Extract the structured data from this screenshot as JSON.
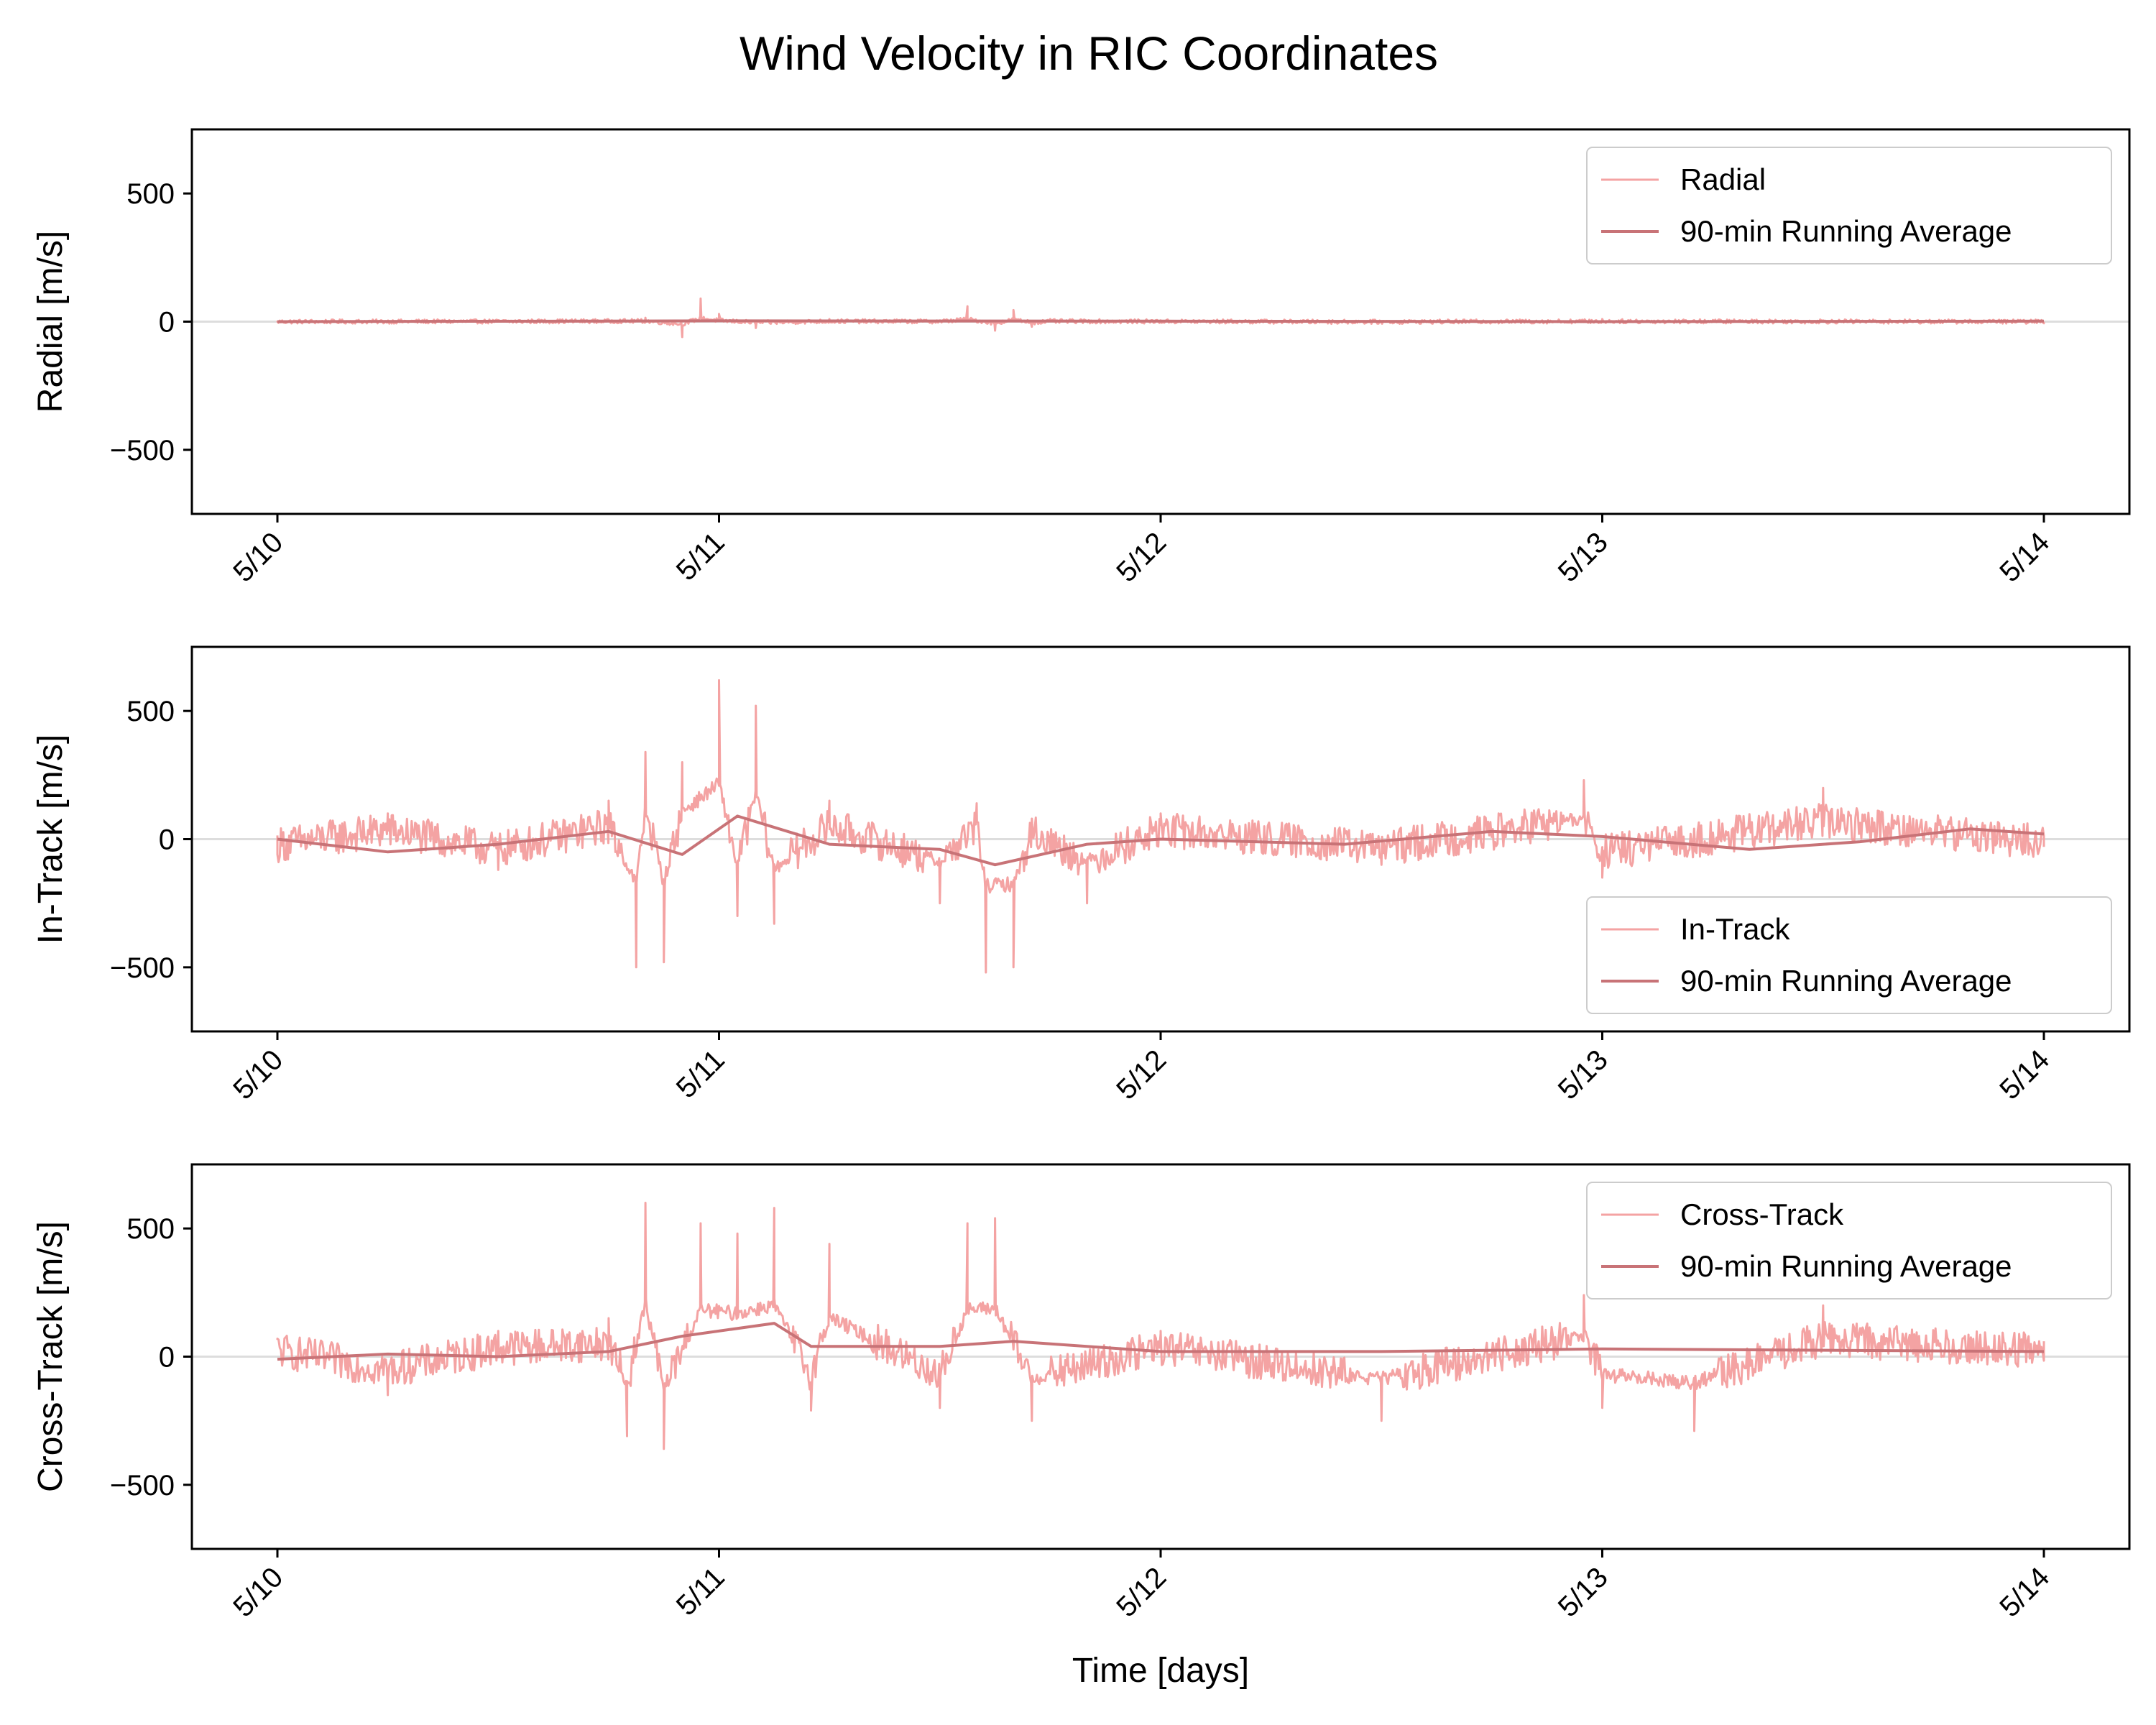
{
  "title": "Wind Velocity in RIC Coordinates",
  "colors": {
    "raw": "#f4a3a3",
    "average": "#c87377",
    "zero_line": "#dddddd",
    "frame": "#000000"
  },
  "chart_data": [
    {
      "type": "line",
      "ylabel": "Radial [m/s]",
      "xlabel": "",
      "xlim": [
        "5/10",
        "5/14"
      ],
      "ylim": [
        -750,
        750
      ],
      "yticks": [
        500,
        0,
        -500
      ],
      "ytick_labels": [
        "500",
        "0",
        "−500"
      ],
      "xticks": [
        "5/10",
        "5/11",
        "5/12",
        "5/13",
        "5/14"
      ],
      "legend": {
        "position": "upper right"
      },
      "series": [
        {
          "name": "Radial",
          "role": "raw",
          "x": [
            "2024-05-10T00:00",
            "2024-05-10T12:00",
            "2024-05-10T20:00",
            "2024-05-10T22:00",
            "2024-05-10T23:00",
            "2024-05-11T00:00",
            "2024-05-11T02:00",
            "2024-05-11T06:00",
            "2024-05-11T12:00",
            "2024-05-11T13:30",
            "2024-05-11T15:00",
            "2024-05-11T16:00",
            "2024-05-11T17:00",
            "2024-05-11T18:00",
            "2024-05-12T00:00",
            "2024-05-12T12:00",
            "2024-05-13T00:00",
            "2024-05-13T12:00",
            "2024-05-14T00:00"
          ],
          "y": [
            0,
            5,
            15,
            -60,
            90,
            30,
            -25,
            10,
            5,
            60,
            -35,
            45,
            -20,
            10,
            5,
            -5,
            10,
            5,
            0
          ]
        },
        {
          "name": "90-min Running Average",
          "role": "average",
          "x": [
            "2024-05-10T00:00",
            "2024-05-11T00:00",
            "2024-05-12T00:00",
            "2024-05-13T00:00",
            "2024-05-14T00:00"
          ],
          "y": [
            0,
            3,
            2,
            0,
            2
          ]
        }
      ]
    },
    {
      "type": "line",
      "ylabel": "In-Track [m/s]",
      "xlabel": "",
      "xlim": [
        "5/10",
        "5/14"
      ],
      "ylim": [
        -750,
        750
      ],
      "yticks": [
        500,
        0,
        -500
      ],
      "ytick_labels": [
        "500",
        "0",
        "−500"
      ],
      "xticks": [
        "5/10",
        "5/11",
        "5/12",
        "5/13",
        "5/14"
      ],
      "legend": {
        "position": "lower right"
      },
      "series": [
        {
          "name": "In-Track",
          "role": "raw",
          "x": [
            "2024-05-10T00:00",
            "2024-05-10T06:00",
            "2024-05-10T12:00",
            "2024-05-10T18:00",
            "2024-05-10T19:30",
            "2024-05-10T20:00",
            "2024-05-10T21:00",
            "2024-05-10T22:00",
            "2024-05-11T00:00",
            "2024-05-11T01:00",
            "2024-05-11T02:00",
            "2024-05-11T03:00",
            "2024-05-11T06:00",
            "2024-05-11T12:00",
            "2024-05-11T14:00",
            "2024-05-11T14:30",
            "2024-05-11T16:00",
            "2024-05-11T17:00",
            "2024-05-11T20:00",
            "2024-05-12T00:00",
            "2024-05-12T12:00",
            "2024-05-12T23:00",
            "2024-05-13T00:00",
            "2024-05-13T12:00",
            "2024-05-14T00:00"
          ],
          "y": [
            -60,
            100,
            -120,
            150,
            -500,
            340,
            -480,
            300,
            620,
            -300,
            520,
            -330,
            150,
            -250,
            140,
            -520,
            -500,
            80,
            -250,
            100,
            -100,
            230,
            -150,
            200,
            -30
          ]
        },
        {
          "name": "90-min Running Average",
          "role": "average",
          "x": [
            "2024-05-10T00:00",
            "2024-05-10T06:00",
            "2024-05-10T12:00",
            "2024-05-10T18:00",
            "2024-05-10T22:00",
            "2024-05-11T01:00",
            "2024-05-11T06:00",
            "2024-05-11T12:00",
            "2024-05-11T15:00",
            "2024-05-11T20:00",
            "2024-05-12T00:00",
            "2024-05-12T10:00",
            "2024-05-12T18:00",
            "2024-05-13T00:00",
            "2024-05-13T08:00",
            "2024-05-13T14:00",
            "2024-05-13T20:00",
            "2024-05-14T00:00"
          ],
          "y": [
            0,
            -50,
            -20,
            30,
            -60,
            90,
            -20,
            -40,
            -100,
            -20,
            0,
            -20,
            30,
            10,
            -40,
            -10,
            40,
            20
          ]
        }
      ]
    },
    {
      "type": "line",
      "ylabel": "Cross-Track [m/s]",
      "xlabel": "Time [days]",
      "xlim": [
        "5/10",
        "5/14"
      ],
      "ylim": [
        -750,
        750
      ],
      "yticks": [
        500,
        0,
        -500
      ],
      "ytick_labels": [
        "500",
        "0",
        "−500"
      ],
      "xticks": [
        "5/10",
        "5/11",
        "5/12",
        "5/13",
        "5/14"
      ],
      "legend": {
        "position": "upper right"
      },
      "series": [
        {
          "name": "Cross-Track",
          "role": "raw",
          "x": [
            "2024-05-10T00:00",
            "2024-05-10T06:00",
            "2024-05-10T12:00",
            "2024-05-10T18:00",
            "2024-05-10T19:00",
            "2024-05-10T20:00",
            "2024-05-10T21:00",
            "2024-05-10T23:00",
            "2024-05-11T01:00",
            "2024-05-11T03:00",
            "2024-05-11T05:00",
            "2024-05-11T06:00",
            "2024-05-11T12:00",
            "2024-05-11T13:30",
            "2024-05-11T15:00",
            "2024-05-11T17:00",
            "2024-05-12T00:00",
            "2024-05-12T12:00",
            "2024-05-12T23:00",
            "2024-05-13T00:00",
            "2024-05-13T05:00",
            "2024-05-13T12:00",
            "2024-05-14T00:00"
          ],
          "y": [
            70,
            -150,
            100,
            150,
            -310,
            600,
            -360,
            520,
            480,
            580,
            -210,
            440,
            -200,
            520,
            540,
            -250,
            100,
            -250,
            240,
            -200,
            -290,
            200,
            60
          ]
        },
        {
          "name": "90-min Running Average",
          "role": "average",
          "x": [
            "2024-05-10T00:00",
            "2024-05-10T06:00",
            "2024-05-10T12:00",
            "2024-05-10T18:00",
            "2024-05-10T22:00",
            "2024-05-11T03:00",
            "2024-05-11T05:00",
            "2024-05-11T12:00",
            "2024-05-11T16:00",
            "2024-05-12T00:00",
            "2024-05-12T12:00",
            "2024-05-13T00:00",
            "2024-05-14T00:00"
          ],
          "y": [
            -10,
            10,
            0,
            20,
            80,
            130,
            40,
            40,
            60,
            20,
            20,
            30,
            20
          ]
        }
      ]
    }
  ]
}
